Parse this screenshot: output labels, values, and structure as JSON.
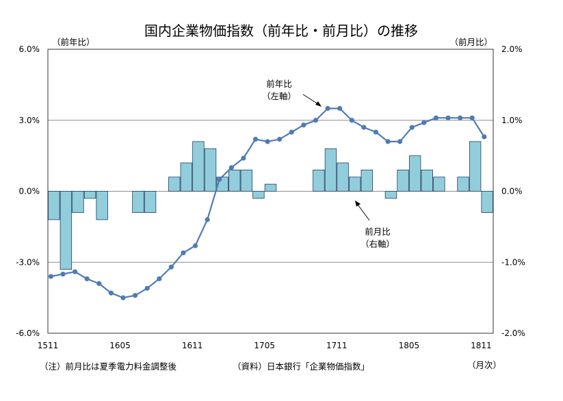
{
  "chart_data": {
    "type": "bar+line",
    "title": "国内企業物価指数（前年比・前月比）の推移",
    "left_axis": {
      "label": "（前年比）",
      "ylim": [
        -6.0,
        6.0
      ],
      "ticks": [
        6.0,
        3.0,
        0.0,
        -3.0,
        -6.0
      ],
      "tick_labels": [
        "6.0%",
        "3.0%",
        "0.0%",
        "-3.0%",
        "-6.0%"
      ]
    },
    "right_axis": {
      "label": "（前月比）",
      "ylim": [
        -2.0,
        2.0
      ],
      "ticks": [
        2.0,
        1.0,
        0.0,
        -1.0,
        -2.0
      ],
      "tick_labels": [
        "2.0%",
        "1.0%",
        "0.0%",
        "-1.0%",
        "-2.0%"
      ]
    },
    "x_tick_labels": [
      {
        "label": "1511",
        "index": 0
      },
      {
        "label": "1605",
        "index": 6
      },
      {
        "label": "1611",
        "index": 12
      },
      {
        "label": "1705",
        "index": 18
      },
      {
        "label": "1711",
        "index": 24
      },
      {
        "label": "1805",
        "index": 30
      },
      {
        "label": "1811",
        "index": 36
      }
    ],
    "x_unit_label": "（月次）",
    "grid": true,
    "series": [
      {
        "name": "前年比",
        "annotation": [
          "前年比",
          "（左軸）"
        ],
        "type": "line",
        "axis": "left",
        "color": "#4F7BB5",
        "values": [
          -3.6,
          -3.5,
          -3.4,
          -3.7,
          -3.9,
          -4.3,
          -4.5,
          -4.4,
          -4.1,
          -3.7,
          -3.2,
          -2.6,
          -2.3,
          -1.2,
          0.5,
          1.0,
          1.4,
          2.2,
          2.1,
          2.2,
          2.5,
          2.8,
          3.0,
          3.5,
          3.5,
          3.0,
          2.7,
          2.5,
          2.1,
          2.1,
          2.7,
          2.9,
          3.1,
          3.1,
          3.1,
          3.1,
          2.3
        ]
      },
      {
        "name": "前月比",
        "annotation": [
          "前月比",
          "（右軸）"
        ],
        "type": "bar",
        "axis": "right",
        "color": "#92CDDC",
        "values": [
          -0.4,
          -1.1,
          -0.3,
          -0.1,
          -0.4,
          0.0,
          0.0,
          -0.3,
          -0.3,
          0.0,
          0.2,
          0.4,
          0.7,
          0.6,
          0.2,
          0.3,
          0.3,
          -0.1,
          0.1,
          0.0,
          0.0,
          0.0,
          0.3,
          0.6,
          0.4,
          0.2,
          0.3,
          0.0,
          -0.1,
          0.3,
          0.5,
          0.3,
          0.2,
          0.0,
          0.2,
          0.7,
          -0.3
        ]
      }
    ]
  },
  "footnotes": {
    "note": "（注）前月比は夏季電力料金調整後",
    "source": "（資料）日本銀行「企業物価指数」"
  }
}
